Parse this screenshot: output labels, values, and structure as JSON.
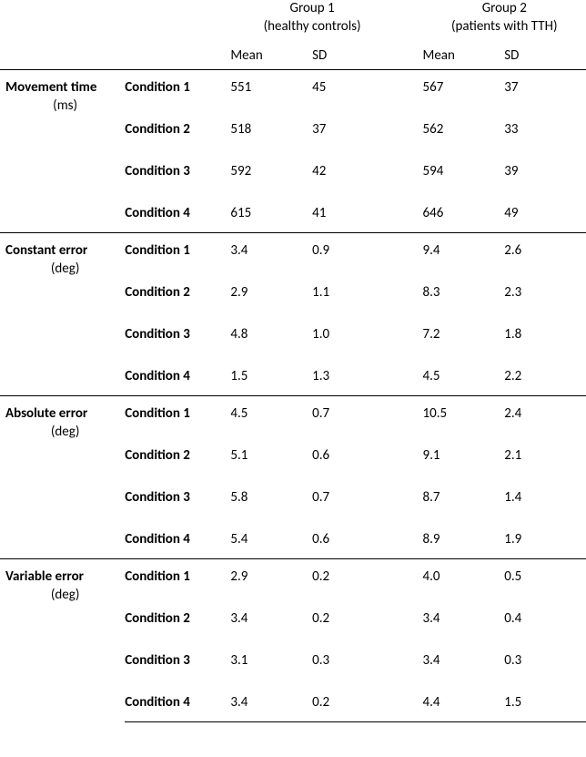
{
  "header": {
    "group1_title": "Group 1",
    "group1_sub": "(healthy controls)",
    "group2_title": "Group 2",
    "group2_sub": "(patients with TTH)",
    "mean_label": "Mean",
    "sd_label": "SD"
  },
  "style": {
    "font_family": "Calibri",
    "font_size_pt": 11,
    "text_color": "#000000",
    "background_color": "#ffffff",
    "border_color": "#000000"
  },
  "table": {
    "type": "table",
    "columns": [
      "measure",
      "condition",
      "group1_mean",
      "group1_sd",
      "group2_mean",
      "group2_sd"
    ],
    "sections": [
      {
        "measure": "Movement time",
        "unit": "(ms)",
        "rows": [
          {
            "condition": "Condition 1",
            "g1_mean": "551",
            "g1_sd": "45",
            "g2_mean": "567",
            "g2_sd": "37"
          },
          {
            "condition": "Condition 2",
            "g1_mean": "518",
            "g1_sd": "37",
            "g2_mean": "562",
            "g2_sd": "33"
          },
          {
            "condition": "Condition 3",
            "g1_mean": "592",
            "g1_sd": "42",
            "g2_mean": "594",
            "g2_sd": "39"
          },
          {
            "condition": "Condition 4",
            "g1_mean": "615",
            "g1_sd": "41",
            "g2_mean": "646",
            "g2_sd": "49"
          }
        ]
      },
      {
        "measure": "Constant error",
        "unit": "(deg)",
        "rows": [
          {
            "condition": "Condition 1",
            "g1_mean": "3.4",
            "g1_sd": "0.9",
            "g2_mean": "9.4",
            "g2_sd": "2.6"
          },
          {
            "condition": "Condition 2",
            "g1_mean": "2.9",
            "g1_sd": "1.1",
            "g2_mean": "8.3",
            "g2_sd": "2.3"
          },
          {
            "condition": "Condition 3",
            "g1_mean": "4.8",
            "g1_sd": "1.0",
            "g2_mean": "7.2",
            "g2_sd": "1.8"
          },
          {
            "condition": "Condition 4",
            "g1_mean": "1.5",
            "g1_sd": "1.3",
            "g2_mean": "4.5",
            "g2_sd": "2.2"
          }
        ]
      },
      {
        "measure": "Absolute error",
        "unit": "(deg)",
        "rows": [
          {
            "condition": "Condition 1",
            "g1_mean": "4.5",
            "g1_sd": "0.7",
            "g2_mean": "10.5",
            "g2_sd": "2.4"
          },
          {
            "condition": "Condition 2",
            "g1_mean": "5.1",
            "g1_sd": "0.6",
            "g2_mean": "9.1",
            "g2_sd": "2.1"
          },
          {
            "condition": "Condition 3",
            "g1_mean": "5.8",
            "g1_sd": "0.7",
            "g2_mean": "8.7",
            "g2_sd": "1.4"
          },
          {
            "condition": "Condition 4",
            "g1_mean": "5.4",
            "g1_sd": "0.6",
            "g2_mean": "8.9",
            "g2_sd": "1.9"
          }
        ]
      },
      {
        "measure": "Variable error",
        "unit": "(deg)",
        "rows": [
          {
            "condition": "Condition 1",
            "g1_mean": "2.9",
            "g1_sd": "0.2",
            "g2_mean": "4.0",
            "g2_sd": "0.5"
          },
          {
            "condition": "Condition 2",
            "g1_mean": "3.4",
            "g1_sd": "0.2",
            "g2_mean": "3.4",
            "g2_sd": "0.4"
          },
          {
            "condition": "Condition 3",
            "g1_mean": "3.1",
            "g1_sd": "0.3",
            "g2_mean": "3.4",
            "g2_sd": "0.3"
          },
          {
            "condition": "Condition 4",
            "g1_mean": "3.4",
            "g1_sd": "0.2",
            "g2_mean": "4.4",
            "g2_sd": "1.5"
          }
        ]
      }
    ]
  }
}
